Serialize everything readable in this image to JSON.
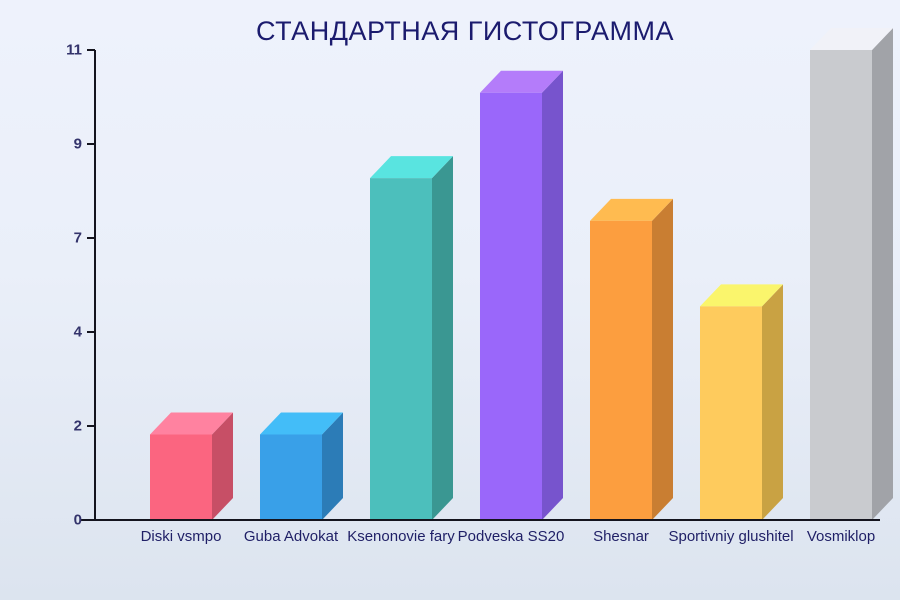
{
  "chart_data": {
    "type": "bar",
    "title": "СТАНДАРТНАЯ ГИСТОГРАММА",
    "xlabel": "",
    "ylabel": "",
    "categories": [
      "Diski vsmpo",
      "Guba Advokat",
      "Ksenonovie fary",
      "Podveska SS20",
      "Shesnar",
      "Sportivniy glushitel",
      "Vosmiklop"
    ],
    "values": [
      2,
      2,
      8,
      10,
      7,
      5,
      11
    ],
    "ylim": [
      0,
      11
    ],
    "ytick_labels": [
      "0",
      "2",
      "4",
      "7",
      "9",
      "11"
    ],
    "grid": false,
    "legend": false,
    "bar_style": "3d-column",
    "bar_colors": [
      {
        "name": "pink",
        "front": "#FB6580",
        "side": "#C74F66",
        "top": "#FF82A0"
      },
      {
        "name": "blue",
        "front": "#39A0E8",
        "side": "#2C7CB7",
        "top": "#43BDF8"
      },
      {
        "name": "teal",
        "front": "#4CBFBC",
        "side": "#3A9792",
        "top": "#59E4E0"
      },
      {
        "name": "purple",
        "front": "#9A67FA",
        "side": "#7754CD",
        "top": "#B47CFA"
      },
      {
        "name": "orange",
        "front": "#FC9E3F",
        "side": "#C97E32",
        "top": "#FFBB50"
      },
      {
        "name": "yellow",
        "front": "#FECB5D",
        "side": "#C9A243",
        "top": "#FAF56C"
      },
      {
        "name": "gray",
        "front": "#C9CBCF",
        "side": "#A1A3A8",
        "top": "#F1F2F8"
      }
    ],
    "colors": {
      "background_top": "#EEF2FC",
      "background_bottom": "#DCE4EF",
      "axis": "#14141E",
      "title": "#1B1B6E",
      "ytick_label": "#33336B",
      "category_label": "#1F1F66"
    }
  }
}
